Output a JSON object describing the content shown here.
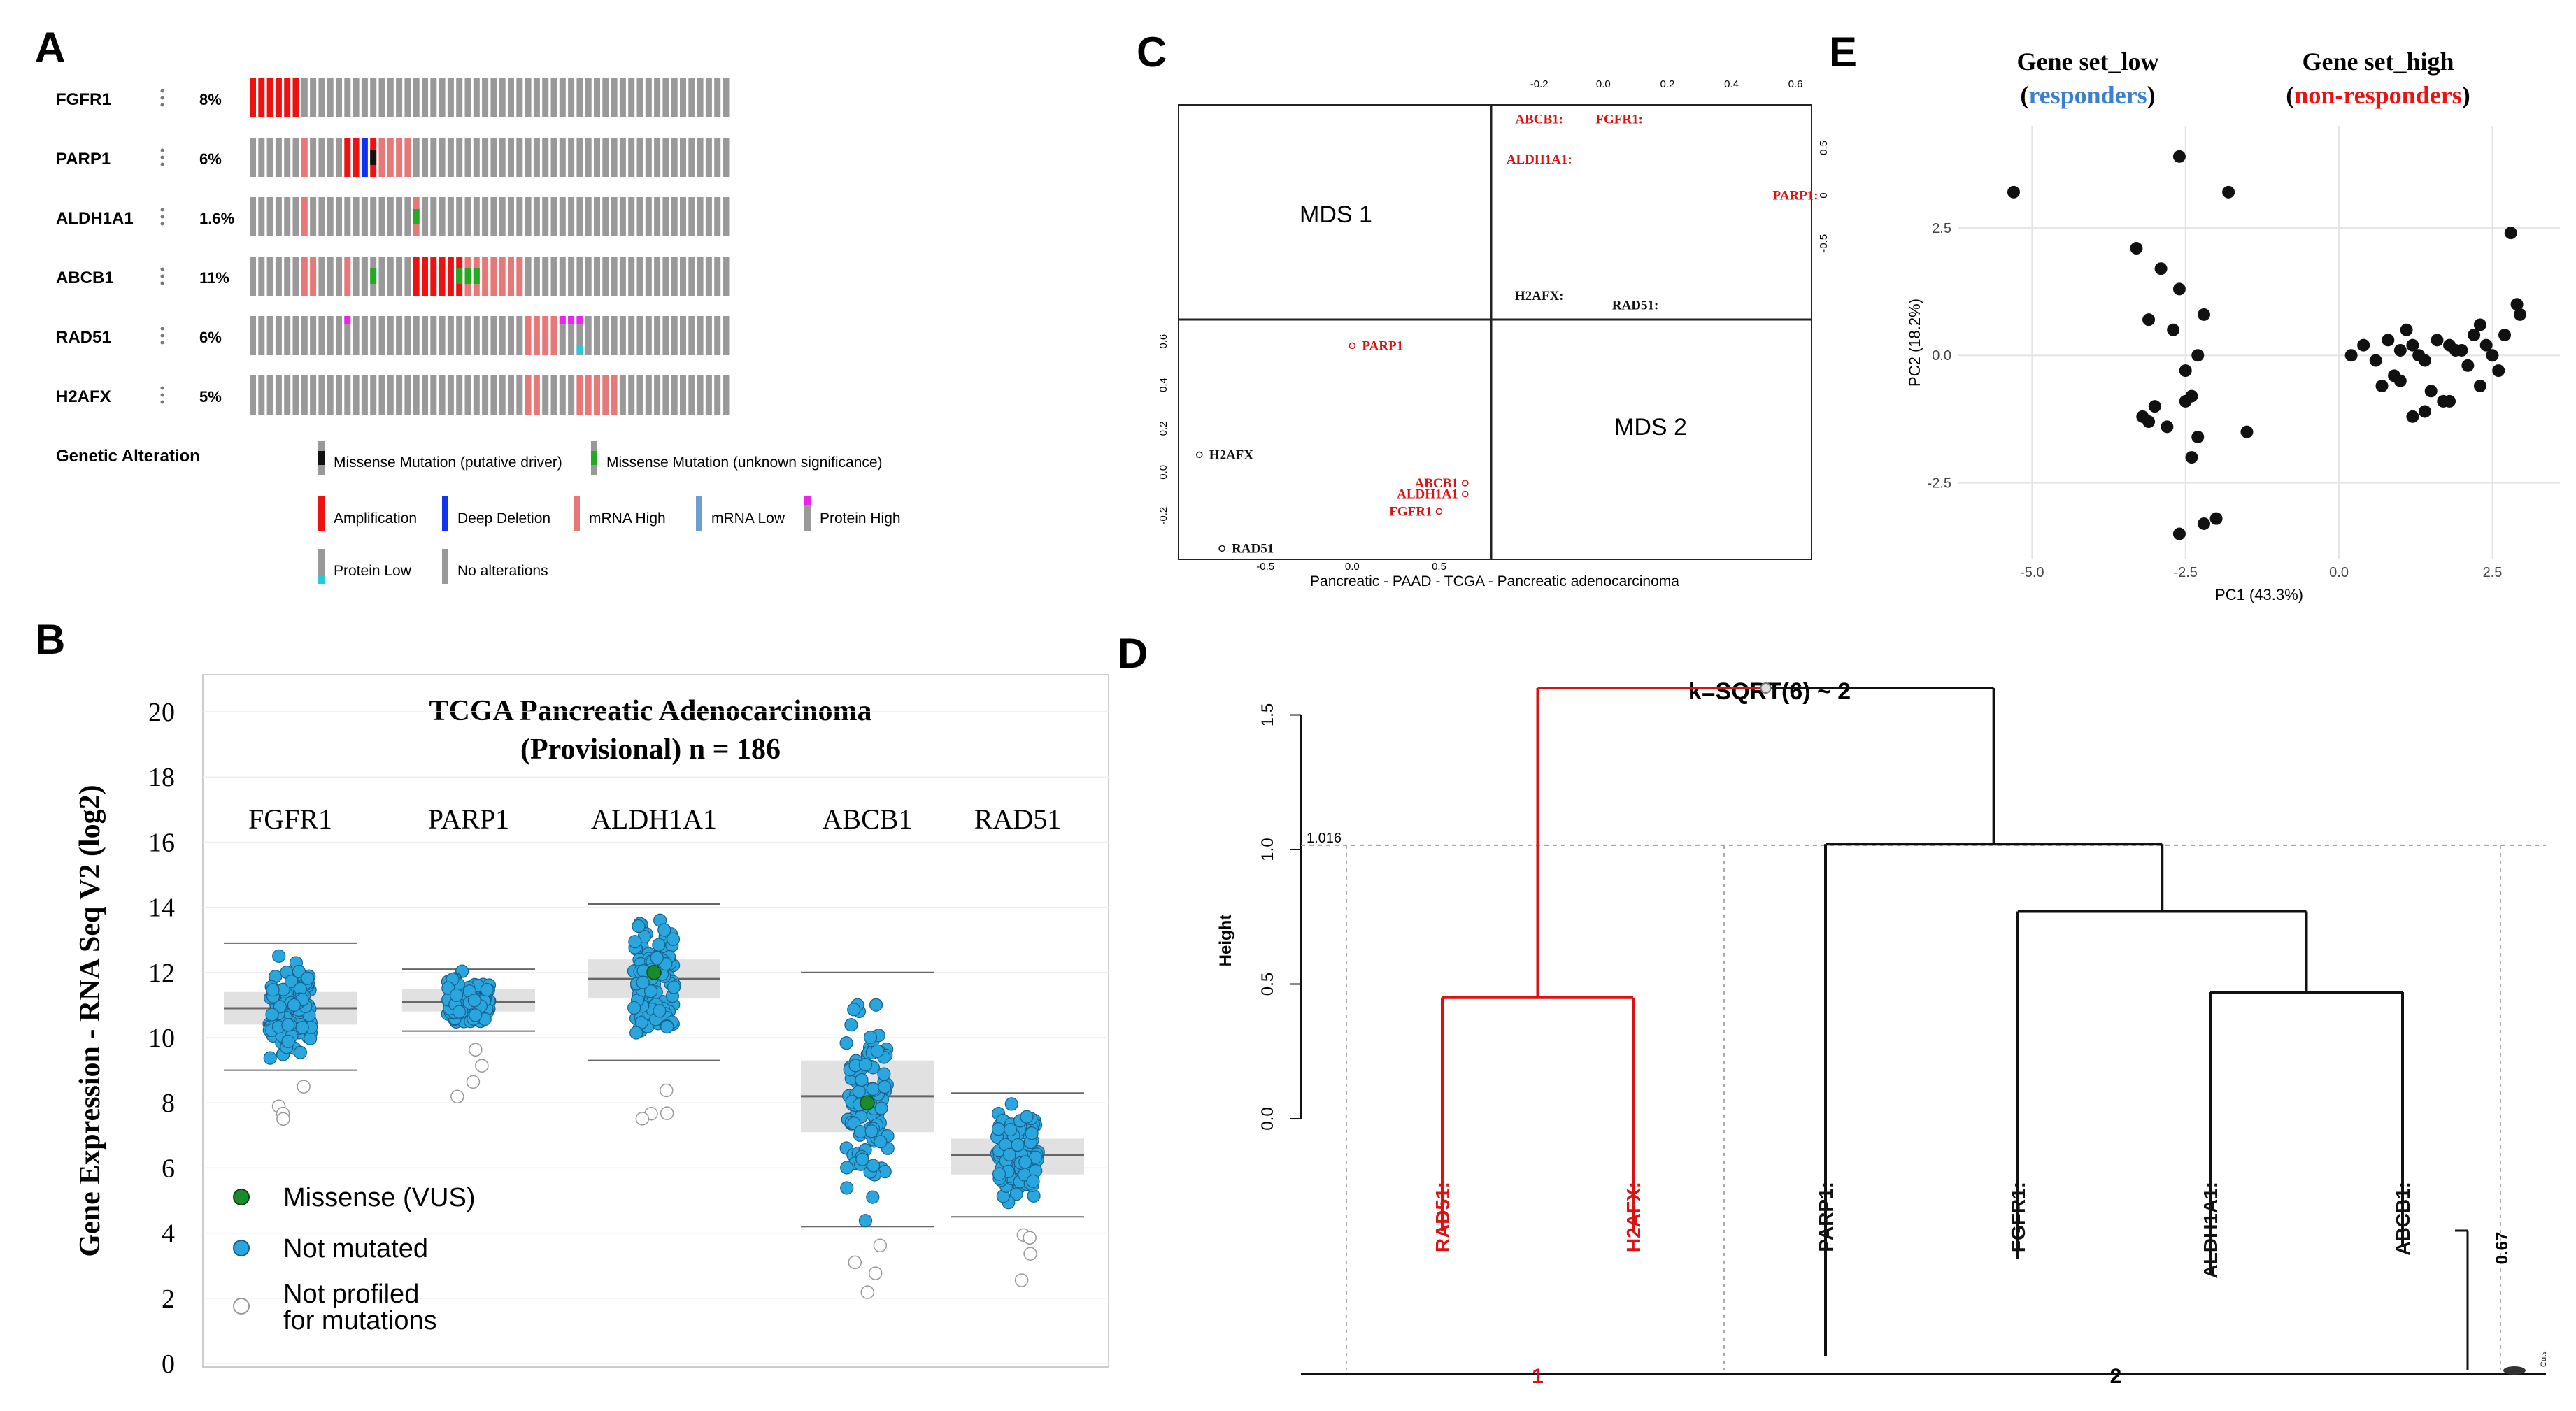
{
  "panels": {
    "a": "A",
    "b": "B",
    "c": "C",
    "d": "D",
    "e": "E"
  },
  "oncoprint": {
    "genes": [
      {
        "name": "FGFR1",
        "pct": "8%"
      },
      {
        "name": "PARP1",
        "pct": "6%"
      },
      {
        "name": "ALDH1A1",
        "pct": "1.6%"
      },
      {
        "name": "ABCB1",
        "pct": "11%"
      },
      {
        "name": "RAD51",
        "pct": "6%"
      },
      {
        "name": "H2AFX",
        "pct": "5%"
      }
    ],
    "legend_title": "Genetic Alteration",
    "legend": [
      {
        "label": "Missense Mutation (putative driver)",
        "color": "#111111"
      },
      {
        "label": "Missense Mutation (unknown significance)",
        "color": "#22aa22"
      },
      {
        "label": "Amplification",
        "color": "#ee1111"
      },
      {
        "label": "Deep Deletion",
        "color": "#1133ee"
      },
      {
        "label": "mRNA High",
        "color": "#e67878"
      },
      {
        "label": "mRNA Low",
        "color": "#6f9fd0"
      },
      {
        "label": "Protein High",
        "color": "#ee22ee"
      },
      {
        "label": "Protein Low",
        "color": "#22ccdd"
      },
      {
        "label": "No alterations",
        "color": "#999999"
      }
    ]
  },
  "chart_data": [
    {
      "type": "scatter",
      "panel": "B",
      "title": "TCGA Pancreatic Adenocarcinoma",
      "subtitle": "(Provisional) n = 186",
      "ylabel": "Gene Expression - RNA Seq V2 (log2)",
      "ylim": [
        0,
        20
      ],
      "yticks": [
        "0",
        "2",
        "4",
        "6",
        "8",
        "10",
        "12",
        "14",
        "16",
        "18",
        "20"
      ],
      "categories": [
        "FGFR1",
        "PARP1",
        "ALDH1A1",
        "ABCB1",
        "RAD51"
      ],
      "medians": [
        10.9,
        11.1,
        11.8,
        8.2,
        6.4
      ],
      "q1": [
        10.4,
        10.8,
        11.2,
        7.1,
        5.8
      ],
      "q3": [
        11.4,
        11.5,
        12.4,
        9.3,
        6.9
      ],
      "whisker_low": [
        9.0,
        10.2,
        9.3,
        4.2,
        4.5
      ],
      "whisker_high": [
        12.9,
        12.1,
        14.1,
        12.0,
        8.3
      ],
      "series": [
        {
          "name": "Missense (VUS)",
          "color": "#1a8a2a"
        },
        {
          "name": "Not mutated",
          "color": "#29a6dd"
        },
        {
          "name": "Not profiled for mutations",
          "color": "#ffffff"
        }
      ],
      "grid": true,
      "legend": "bottom-left"
    },
    {
      "type": "scatter",
      "panel": "C",
      "xlabel": "Pancreatic - PAAD - TCGA - Pancreatic adenocarcinoma",
      "quadrant_labels": [
        "MDS 1",
        "MDS 2"
      ],
      "left_xticks": [
        "-0.5",
        "0.0",
        "0.5"
      ],
      "left_yticks": [
        "0.6",
        "0.4",
        "0.2",
        "0.0",
        "-0.2"
      ],
      "top_xticks": [
        "-0.2",
        "0.0",
        "0.2",
        "0.4",
        "0.6"
      ],
      "right_yticks": [
        "0.5",
        "0",
        "-0.5"
      ],
      "left_points": [
        {
          "label": "PARP1",
          "x": 0.0,
          "y": 0.58,
          "color": "#dd1111"
        },
        {
          "label": "H2AFX",
          "x": -0.88,
          "y": 0.08,
          "color": "#111111"
        },
        {
          "label": "RAD51",
          "x": -0.75,
          "y": -0.35,
          "color": "#111111"
        },
        {
          "label": "ABCB1",
          "x": 0.65,
          "y": -0.05,
          "color": "#dd1111"
        },
        {
          "label": "ALDH1A1",
          "x": 0.65,
          "y": -0.1,
          "color": "#dd1111"
        },
        {
          "label": "FGFR1",
          "x": 0.5,
          "y": -0.18,
          "color": "#dd1111"
        }
      ],
      "right_points": [
        {
          "label": "ABCB1:",
          "x": -0.2,
          "y": 0.8,
          "color": "#dd1111"
        },
        {
          "label": "FGFR1:",
          "x": 0.05,
          "y": 0.8,
          "color": "#dd1111"
        },
        {
          "label": "ALDH1A1:",
          "x": -0.2,
          "y": 0.38,
          "color": "#dd1111"
        },
        {
          "label": "PARP1:",
          "x": 0.6,
          "y": 0.0,
          "color": "#dd1111"
        },
        {
          "label": "H2AFX:",
          "x": -0.2,
          "y": -1.05,
          "color": "#111111"
        },
        {
          "label": "RAD51:",
          "x": 0.1,
          "y": -1.15,
          "color": "#111111"
        }
      ]
    },
    {
      "type": "scatter",
      "panel": "E",
      "group_low": "Gene set_low",
      "group_low_sub": "responders",
      "group_high": "Gene set_high",
      "group_high_sub": "non-responders",
      "xlabel": "PC1 (43.3%)",
      "ylabel": "PC2 (18.2%)",
      "xticks": [
        "-5.0",
        "-2.5",
        "0.0",
        "2.5"
      ],
      "yticks": [
        "2.5",
        "0.0",
        "-2.5"
      ],
      "xlim": [
        -6.2,
        3.6
      ],
      "ylim": [
        -4.0,
        4.5
      ],
      "x": [
        -5.3,
        -2.6,
        -1.8,
        -3.3,
        -2.9,
        -2.6,
        -2.2,
        -3.1,
        -2.7,
        -2.3,
        -2.5,
        -2.5,
        -3.2,
        -3.0,
        -2.8,
        -2.4,
        -1.5,
        -2.0,
        -2.6,
        -3.1,
        -2.3,
        -2.2,
        -2.4,
        2.8,
        0.2,
        0.4,
        0.6,
        0.8,
        1.0,
        1.2,
        1.4,
        1.6,
        1.8,
        2.0,
        2.2,
        2.4,
        2.6,
        2.9,
        0.7,
        0.9,
        1.1,
        1.3,
        1.5,
        1.7,
        1.9,
        2.1,
        2.3,
        2.5,
        2.7,
        2.95,
        1.0,
        1.4,
        2.3,
        1.2,
        1.8
      ],
      "y": [
        3.2,
        3.9,
        3.2,
        2.1,
        1.7,
        1.3,
        0.8,
        0.7,
        0.5,
        0.0,
        -0.3,
        -0.9,
        -1.2,
        -1.0,
        -1.4,
        -2.0,
        -1.5,
        -3.2,
        -3.5,
        -1.3,
        -1.6,
        -3.3,
        -0.8,
        2.4,
        0.0,
        0.2,
        -0.1,
        0.3,
        0.1,
        0.2,
        -0.1,
        0.3,
        0.2,
        0.1,
        0.4,
        0.2,
        -0.3,
        1.0,
        -0.6,
        -0.4,
        0.5,
        0.0,
        -0.7,
        -0.9,
        0.1,
        -0.2,
        0.6,
        0.0,
        0.4,
        0.8,
        -0.5,
        -1.1,
        -0.6,
        -1.2,
        -0.9
      ],
      "grid": true
    },
    {
      "type": "dendrogram",
      "panel": "D",
      "title": "k=SQRT(6) ~ 2",
      "ylabel": "Height",
      "yticks": [
        "0.0",
        "0.5",
        "1.0",
        "1.5"
      ],
      "cut_label": "1.016",
      "leaves": [
        "RAD51:",
        "H2AFX:",
        "PARP1:",
        "FGFR1:",
        "ALDH1A1:",
        "ABCB1:"
      ],
      "leaf_colors": [
        "#dd1111",
        "#dd1111",
        "#111111",
        "#111111",
        "#111111",
        "#111111"
      ],
      "merges": [
        {
          "height": 0.45,
          "color": "#dd1111"
        },
        {
          "height": 0.47,
          "color": "#111111"
        },
        {
          "height": 0.77,
          "color": "#111111"
        },
        {
          "height": 1.02,
          "color": "#111111"
        },
        {
          "height": 1.6,
          "color": "#111111"
        }
      ],
      "bottom_labels": [
        "1",
        "2"
      ],
      "side_label": "0.67",
      "corner_label": "Cuts"
    }
  ]
}
